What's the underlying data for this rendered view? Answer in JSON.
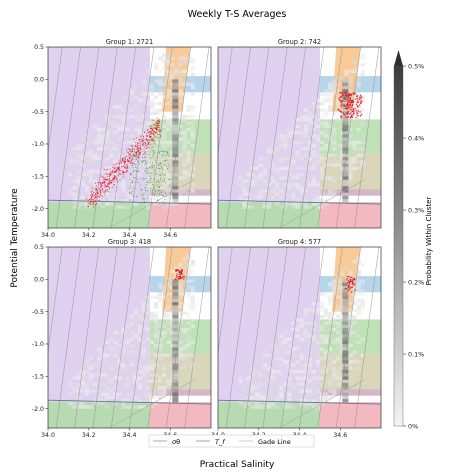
{
  "title": "Weekly T-S Averages",
  "xlabel": "Practical Salinity",
  "ylabel": "Potential Temperature",
  "colorbar": {
    "label": "Probability Within Cluster",
    "ticks": [
      "0%",
      "0.1%",
      "0.2%",
      "0.3%",
      "0.4%",
      "0.5%"
    ],
    "range": [
      0,
      0.5
    ]
  },
  "legend": {
    "items": [
      "σθ",
      "T_f",
      "Gade Line"
    ]
  },
  "colors": {
    "purple": "#d9c9ec",
    "orange": "#f7c48d",
    "blue": "#a9cde6",
    "green": "#b3dca8",
    "pink": "#f2b1ba",
    "olive": "#c9c59c",
    "maroon": "#b5879e",
    "red": "#e0121b",
    "scatter_green": "#3b9c4a"
  },
  "chart_data": [
    {
      "type": "scatter",
      "title": "Group 1: 2721",
      "xlim": [
        34.0,
        34.8
      ],
      "ylim": [
        -2.3,
        0.5
      ],
      "xticks": [
        "34.0",
        "34.2",
        "34.4",
        "34.6"
      ],
      "yticks": [
        "0.5",
        "0.0",
        "-0.5",
        "-1.0",
        "-1.5",
        "-2.0"
      ],
      "red_cluster": {
        "x": [
          34.2,
          34.55
        ],
        "y": [
          -1.9,
          -0.7
        ]
      },
      "green_cluster": {
        "x": [
          34.4,
          34.6
        ],
        "y": [
          -1.9,
          -1.1
        ]
      }
    },
    {
      "type": "scatter",
      "title": "Group 2: 742",
      "xlim": [
        34.0,
        34.8
      ],
      "ylim": [
        -2.3,
        0.5
      ],
      "xticks": [],
      "yticks": [],
      "red_cluster": {
        "x": [
          34.6,
          34.7
        ],
        "y": [
          -0.6,
          -0.2
        ]
      }
    },
    {
      "type": "scatter",
      "title": "Group 3: 418",
      "xlim": [
        34.0,
        34.8
      ],
      "ylim": [
        -2.3,
        0.5
      ],
      "xticks": [
        "34.0",
        "34.2",
        "34.4",
        "34.6"
      ],
      "yticks": [
        "0.5",
        "0.0",
        "-0.5",
        "-1.0",
        "-1.5",
        "-2.0"
      ],
      "red_cluster": {
        "x": [
          34.63,
          34.66
        ],
        "y": [
          0.0,
          0.15
        ]
      }
    },
    {
      "type": "scatter",
      "title": "Group 4: 577",
      "xlim": [
        34.0,
        34.8
      ],
      "ylim": [
        -2.3,
        0.5
      ],
      "xticks": [
        "34.0",
        "34.2",
        "34.4",
        "34.6"
      ],
      "yticks": [],
      "red_cluster": {
        "x": [
          34.63,
          34.67
        ],
        "y": [
          -0.2,
          0.05
        ]
      }
    }
  ]
}
